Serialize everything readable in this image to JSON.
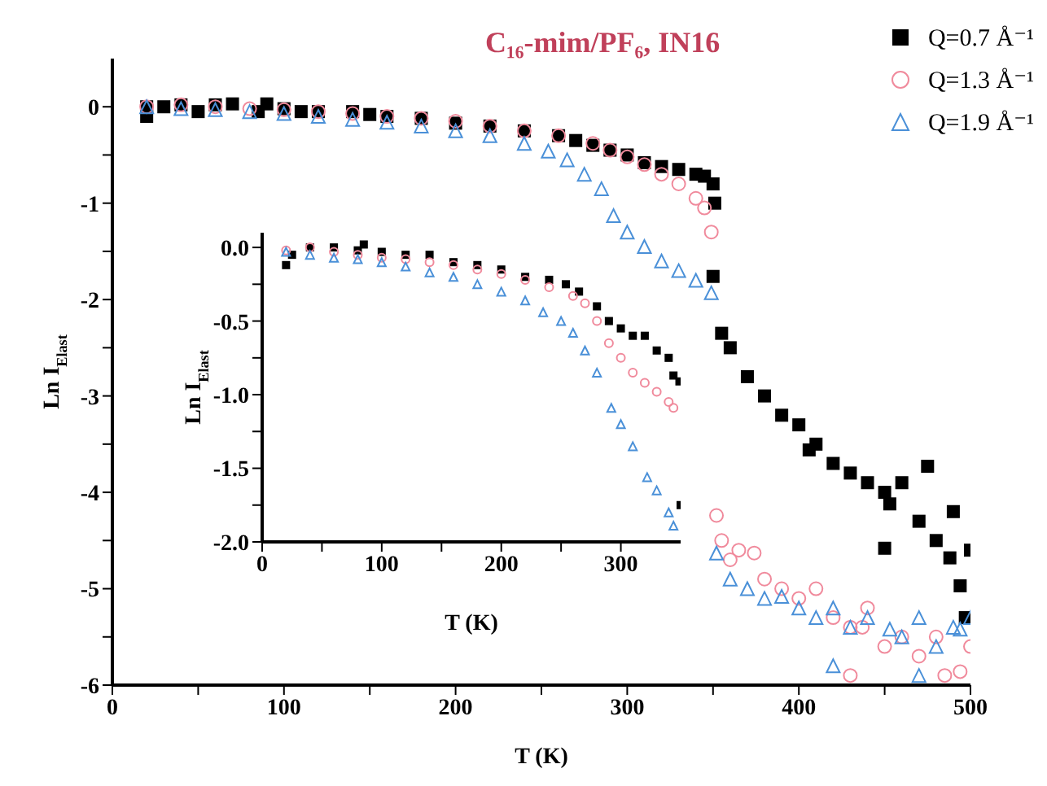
{
  "chart_data": [
    {
      "type": "scatter",
      "title": "C₁₆-mim/PF₆, IN16",
      "xlabel": "T (K)",
      "ylabel": "Ln I$_{Elast}$",
      "legend": "top right",
      "xlim": [
        0,
        500
      ],
      "xticks": [
        0,
        {
          "value": 50,
          "label": null
        },
        100,
        {
          "value": 150,
          "label": null
        },
        200,
        {
          "value": 250,
          "label": null
        },
        300,
        {
          "value": 350,
          "label": null
        },
        400,
        {
          "value": 450,
          "label": null
        },
        500
      ],
      "ylim": [
        -6,
        0.5
      ],
      "yticks": [
        -6,
        {
          "value": -5.5,
          "label": null
        },
        -5,
        {
          "value": -4.5,
          "label": null
        },
        -4,
        {
          "value": -3.5,
          "label": null
        },
        -3,
        {
          "value": -2.5,
          "label": null
        },
        -2,
        {
          "value": -1.5,
          "label": null
        },
        -1,
        {
          "value": -0.5,
          "label": null
        },
        0
      ],
      "series": [
        {
          "name": "Q=0.7 Å⁻¹",
          "color": "#000000",
          "marker": "square",
          "x": [
            20,
            20,
            30,
            40,
            50,
            60,
            70,
            85,
            90,
            100,
            110,
            120,
            140,
            150,
            160,
            180,
            200,
            220,
            240,
            260,
            270,
            280,
            290,
            300,
            310,
            320,
            330,
            340,
            345,
            350,
            351,
            350,
            355,
            360,
            370,
            380,
            390,
            400,
            406,
            410,
            420,
            430,
            440,
            450,
            453,
            460,
            470,
            475,
            480,
            488,
            490,
            494,
            497,
            500,
            450
          ],
          "values": [
            0,
            -0.1,
            0,
            0.02,
            -0.05,
            0.02,
            0.03,
            -0.05,
            0.03,
            -0.02,
            -0.05,
            -0.05,
            -0.05,
            -0.08,
            -0.1,
            -0.12,
            -0.17,
            -0.2,
            -0.25,
            -0.3,
            -0.35,
            -0.4,
            -0.45,
            -0.5,
            -0.58,
            -0.62,
            -0.65,
            -0.7,
            -0.72,
            -0.8,
            -1.0,
            -1.76,
            -2.35,
            -2.5,
            -2.8,
            -3.0,
            -3.2,
            -3.3,
            -3.56,
            -3.5,
            -3.7,
            -3.8,
            -3.9,
            -4.0,
            -4.12,
            -3.9,
            -4.3,
            -3.73,
            -4.5,
            -4.68,
            -4.2,
            -4.97,
            -5.3,
            -4.6,
            -4.58
          ]
        },
        {
          "name": "Q=1.3 Å⁻¹",
          "color": "#f08a9c",
          "marker": "circle",
          "x": [
            20,
            40,
            60,
            80,
            100,
            120,
            140,
            160,
            180,
            200,
            220,
            240,
            260,
            280,
            290,
            300,
            310,
            320,
            330,
            340,
            345,
            349,
            352,
            355,
            360,
            365,
            374,
            380,
            390,
            400,
            410,
            420,
            430,
            437,
            440,
            450,
            460,
            470,
            480,
            485,
            494,
            500,
            430
          ],
          "values": [
            0,
            0.02,
            0,
            -0.02,
            -0.03,
            -0.05,
            -0.07,
            -0.1,
            -0.12,
            -0.15,
            -0.2,
            -0.25,
            -0.3,
            -0.38,
            -0.45,
            -0.52,
            -0.6,
            -0.7,
            -0.8,
            -0.95,
            -1.05,
            -1.3,
            -4.24,
            -4.5,
            -4.7,
            -4.6,
            -4.63,
            -4.9,
            -5.0,
            -5.1,
            -5.0,
            -5.3,
            -5.4,
            -5.4,
            -5.2,
            -5.6,
            -5.5,
            -5.7,
            -5.5,
            -5.9,
            -5.86,
            -5.6,
            -5.9
          ]
        },
        {
          "name": "Q=1.9 Å⁻¹",
          "color": "#4a90d8",
          "marker": "triangle",
          "x": [
            20,
            40,
            60,
            80,
            100,
            120,
            140,
            160,
            180,
            200,
            220,
            240,
            254,
            265,
            275,
            285,
            292,
            300,
            310,
            320,
            330,
            340,
            349,
            352,
            360,
            370,
            380,
            390,
            400,
            410,
            420,
            430,
            440,
            453,
            460,
            470,
            480,
            490,
            494,
            500,
            420,
            470
          ],
          "values": [
            0,
            -0.02,
            -0.03,
            -0.05,
            -0.07,
            -0.1,
            -0.13,
            -0.16,
            -0.2,
            -0.25,
            -0.3,
            -0.38,
            -0.46,
            -0.55,
            -0.7,
            -0.85,
            -1.13,
            -1.3,
            -1.45,
            -1.6,
            -1.7,
            -1.8,
            -1.93,
            -4.63,
            -4.9,
            -5.0,
            -5.1,
            -5.08,
            -5.2,
            -5.3,
            -5.2,
            -5.4,
            -5.3,
            -5.42,
            -5.5,
            -5.3,
            -5.6,
            -5.4,
            -5.42,
            -5.3,
            -5.8,
            -5.9
          ]
        }
      ]
    },
    {
      "type": "scatter",
      "xlabel": "T (K)",
      "ylabel": "Ln I$_{Elast}$",
      "xlim": [
        0,
        350
      ],
      "xticks": [
        0,
        {
          "value": 50,
          "label": null
        },
        100,
        {
          "value": 150,
          "label": null
        },
        200,
        {
          "value": 250,
          "label": null
        },
        300
      ],
      "ylim": [
        -2,
        0.1
      ],
      "yticks": [
        {
          "value": -2,
          "label": "-2.0"
        },
        {
          "value": -1.75,
          "label": null
        },
        {
          "value": -1.5,
          "label": "-1.5"
        },
        {
          "value": -1.25,
          "label": null
        },
        {
          "value": -1,
          "label": "-1.0"
        },
        {
          "value": -0.75,
          "label": null
        },
        {
          "value": -0.5,
          "label": "-0.5"
        },
        {
          "value": -0.25,
          "label": null
        },
        {
          "value": 0,
          "label": "0.0"
        }
      ],
      "series": [
        {
          "color": "#000000",
          "marker": "square",
          "x": [
            25,
            20,
            40,
            60,
            80,
            85,
            100,
            120,
            140,
            160,
            180,
            200,
            220,
            240,
            254,
            265,
            280,
            290,
            300,
            310,
            320,
            330,
            340,
            344,
            349,
            350
          ],
          "values": [
            -0.05,
            -0.12,
            0,
            0,
            -0.02,
            0.02,
            -0.03,
            -0.05,
            -0.05,
            -0.1,
            -0.12,
            -0.15,
            -0.2,
            -0.22,
            -0.25,
            -0.3,
            -0.4,
            -0.5,
            -0.55,
            -0.6,
            -0.6,
            -0.7,
            -0.75,
            -0.87,
            -0.91,
            -1.75
          ]
        },
        {
          "color": "#f08a9c",
          "marker": "circle",
          "x": [
            20,
            40,
            60,
            80,
            100,
            120,
            140,
            160,
            180,
            200,
            220,
            240,
            260,
            270,
            280,
            290,
            300,
            310,
            320,
            330,
            340,
            344
          ],
          "values": [
            -0.02,
            0,
            -0.03,
            -0.05,
            -0.07,
            -0.08,
            -0.1,
            -0.12,
            -0.15,
            -0.18,
            -0.22,
            -0.27,
            -0.33,
            -0.38,
            -0.5,
            -0.65,
            -0.75,
            -0.85,
            -0.92,
            -0.98,
            -1.05,
            -1.09
          ]
        },
        {
          "color": "#4a90d8",
          "marker": "triangle",
          "x": [
            20,
            40,
            60,
            80,
            100,
            120,
            140,
            160,
            180,
            200,
            220,
            235,
            250,
            260,
            270,
            280,
            292,
            300,
            310,
            322,
            330,
            340,
            344
          ],
          "values": [
            -0.03,
            -0.05,
            -0.07,
            -0.08,
            -0.1,
            -0.13,
            -0.17,
            -0.2,
            -0.25,
            -0.3,
            -0.36,
            -0.44,
            -0.5,
            -0.58,
            -0.7,
            -0.85,
            -1.09,
            -1.2,
            -1.35,
            -1.56,
            -1.65,
            -1.8,
            -1.89
          ]
        }
      ]
    }
  ]
}
